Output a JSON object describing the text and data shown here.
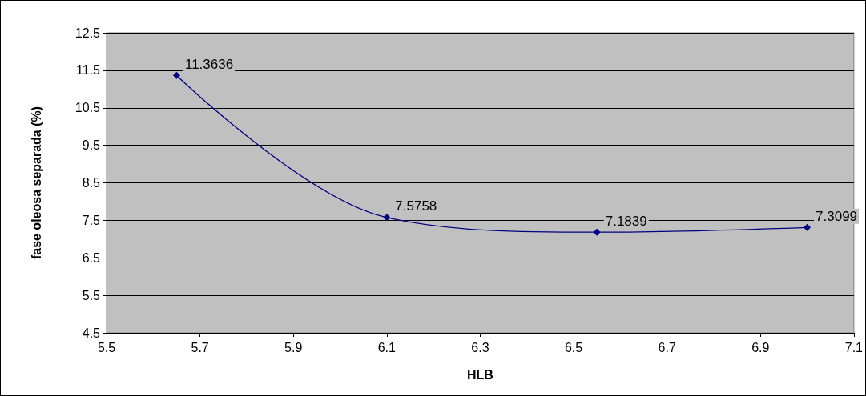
{
  "chart_data": {
    "type": "line",
    "xlabel": "HLB",
    "ylabel": "fase oleosa separada (%)",
    "x": [
      5.65,
      6.1,
      6.55,
      7.0
    ],
    "series": [
      {
        "color": "#000080",
        "values": [
          11.3636,
          7.5758,
          7.1839,
          7.3099
        ]
      }
    ],
    "xlim": [
      5.5,
      7.1
    ],
    "xticks": [
      5.5,
      5.7,
      5.9,
      6.1,
      6.3,
      6.5,
      6.7,
      6.9,
      7.1
    ],
    "ylim": [
      4.5,
      12.5
    ],
    "yticks": [
      4.5,
      5.5,
      6.5,
      7.5,
      8.5,
      9.5,
      10.5,
      11.5,
      12.5
    ],
    "grid": "y",
    "marker": "diamond",
    "line_style": "solid",
    "data_labels": true
  }
}
